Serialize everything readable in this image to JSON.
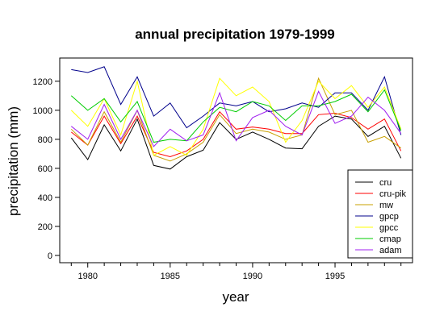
{
  "chart_data": {
    "type": "line",
    "title": "annual precipitation 1979-1999",
    "xlabel": "year",
    "ylabel": "precipitation (mm)",
    "xlim": [
      1978.3,
      1999.7
    ],
    "ylim": [
      -50,
      1360
    ],
    "xticks": [
      1980,
      1985,
      1990,
      1995
    ],
    "yticks": [
      0,
      200,
      400,
      600,
      800,
      1000,
      1200
    ],
    "grid": false,
    "legend_position": "bottom-right",
    "x": [
      1979,
      1980,
      1981,
      1982,
      1983,
      1984,
      1985,
      1986,
      1987,
      1988,
      1989,
      1990,
      1991,
      1992,
      1993,
      1994,
      1995,
      1996,
      1997,
      1998,
      1999
    ],
    "series": [
      {
        "name": "cru",
        "color": "#000000",
        "values": [
          810,
          660,
          900,
          720,
          940,
          620,
          595,
          680,
          725,
          915,
          800,
          850,
          800,
          740,
          735,
          890,
          960,
          940,
          820,
          890,
          670
        ]
      },
      {
        "name": "cru-pik",
        "color": "#ff0000",
        "values": [
          850,
          760,
          960,
          770,
          960,
          710,
          680,
          720,
          800,
          990,
          870,
          885,
          870,
          840,
          840,
          970,
          980,
          950,
          870,
          940,
          720
        ]
      },
      {
        "name": "mw",
        "color": "#c8a000",
        "values": [
          870,
          760,
          990,
          780,
          1000,
          690,
          650,
          700,
          780,
          970,
          840,
          870,
          850,
          800,
          830,
          1220,
          970,
          1000,
          780,
          820,
          740
        ]
      },
      {
        "name": "gpcp",
        "color": "#00008b",
        "values": [
          1280,
          1260,
          1300,
          1040,
          1230,
          960,
          1050,
          880,
          960,
          1050,
          1030,
          1060,
          990,
          1010,
          1050,
          1020,
          1120,
          1120,
          1000,
          1230,
          830
        ]
      },
      {
        "name": "gpcc",
        "color": "#ffff00",
        "values": [
          1000,
          890,
          1080,
          830,
          1200,
          690,
          750,
          690,
          870,
          1220,
          1100,
          1160,
          1060,
          780,
          930,
          1200,
          1080,
          1170,
          1020,
          1160,
          870
        ]
      },
      {
        "name": "cmap",
        "color": "#00cc00",
        "values": [
          1100,
          1000,
          1080,
          920,
          1060,
          780,
          800,
          790,
          920,
          1020,
          990,
          1060,
          1030,
          930,
          1030,
          1030,
          1060,
          1110,
          990,
          1140,
          860
        ]
      },
      {
        "name": "adam",
        "color": "#a020f0",
        "values": [
          890,
          800,
          1040,
          800,
          1000,
          750,
          870,
          790,
          830,
          1120,
          790,
          950,
          1000,
          890,
          830,
          1130,
          910,
          960,
          1090,
          1000,
          840
        ]
      }
    ]
  }
}
